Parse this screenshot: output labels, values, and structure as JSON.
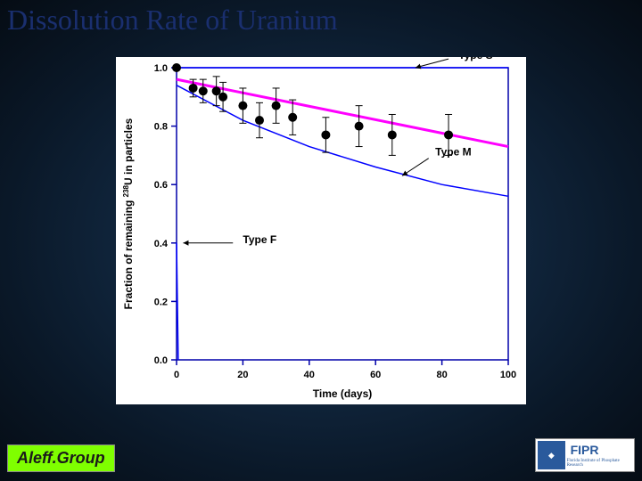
{
  "slide_title": "Dissolution Rate of Uranium",
  "footer": {
    "left_label": "Aleff.Group",
    "right_label": "FIPR",
    "right_sub": "Florida Institute of Phosphate Research"
  },
  "chart": {
    "type": "line-scatter",
    "background_color": "#ffffff",
    "xlabel": "Time (days)",
    "ylabel": "Fraction of remaining 238U in particles",
    "label_fontsize": 12,
    "label_fontweight": "bold",
    "axis_color": "#0000aa",
    "tick_fontsize": 11,
    "xlim": [
      0,
      100
    ],
    "ylim": [
      0.0,
      1.0
    ],
    "xticks": [
      0,
      20,
      40,
      60,
      80,
      100
    ],
    "yticks": [
      0.0,
      0.2,
      0.4,
      0.6,
      0.8,
      1.0
    ],
    "data_points": {
      "color": "#000000",
      "marker": "circle",
      "marker_size": 5,
      "errorbar_color": "#000000",
      "points": [
        {
          "x": 0,
          "y": 1.0,
          "err": 0.0
        },
        {
          "x": 5,
          "y": 0.93,
          "err": 0.03
        },
        {
          "x": 8,
          "y": 0.92,
          "err": 0.04
        },
        {
          "x": 12,
          "y": 0.92,
          "err": 0.05
        },
        {
          "x": 14,
          "y": 0.9,
          "err": 0.05
        },
        {
          "x": 20,
          "y": 0.87,
          "err": 0.06
        },
        {
          "x": 25,
          "y": 0.82,
          "err": 0.06
        },
        {
          "x": 30,
          "y": 0.87,
          "err": 0.06
        },
        {
          "x": 35,
          "y": 0.83,
          "err": 0.06
        },
        {
          "x": 45,
          "y": 0.77,
          "err": 0.06
        },
        {
          "x": 55,
          "y": 0.8,
          "err": 0.07
        },
        {
          "x": 65,
          "y": 0.77,
          "err": 0.07
        },
        {
          "x": 82,
          "y": 0.77,
          "err": 0.07
        }
      ]
    },
    "fit_line": {
      "color": "#ff00ff",
      "width": 3,
      "points": [
        {
          "x": 0,
          "y": 0.96
        },
        {
          "x": 100,
          "y": 0.73
        }
      ]
    },
    "ref_curves": [
      {
        "name": "Type S",
        "color": "#0000ff",
        "width": 1.5,
        "points": [
          {
            "x": 0,
            "y": 1.0
          },
          {
            "x": 100,
            "y": 1.0
          }
        ],
        "label_xy": [
          85,
          1.03
        ],
        "arrow_from": [
          82,
          1.03
        ],
        "arrow_to": [
          72,
          1.0
        ]
      },
      {
        "name": "Type M",
        "color": "#0000ff",
        "width": 1.5,
        "points": [
          {
            "x": 0,
            "y": 0.94
          },
          {
            "x": 20,
            "y": 0.82
          },
          {
            "x": 40,
            "y": 0.73
          },
          {
            "x": 60,
            "y": 0.66
          },
          {
            "x": 80,
            "y": 0.6
          },
          {
            "x": 100,
            "y": 0.56
          }
        ],
        "label_xy": [
          78,
          0.7
        ],
        "arrow_from": [
          76,
          0.69
        ],
        "arrow_to": [
          68,
          0.63
        ]
      },
      {
        "name": "Type F",
        "color": "#0000ff",
        "width": 1.5,
        "points": [
          {
            "x": 0,
            "y": 0.4
          },
          {
            "x": 0.5,
            "y": 0.0
          }
        ],
        "label_xy": [
          20,
          0.4
        ],
        "arrow_from": [
          17,
          0.4
        ],
        "arrow_to": [
          2,
          0.4
        ]
      }
    ]
  }
}
